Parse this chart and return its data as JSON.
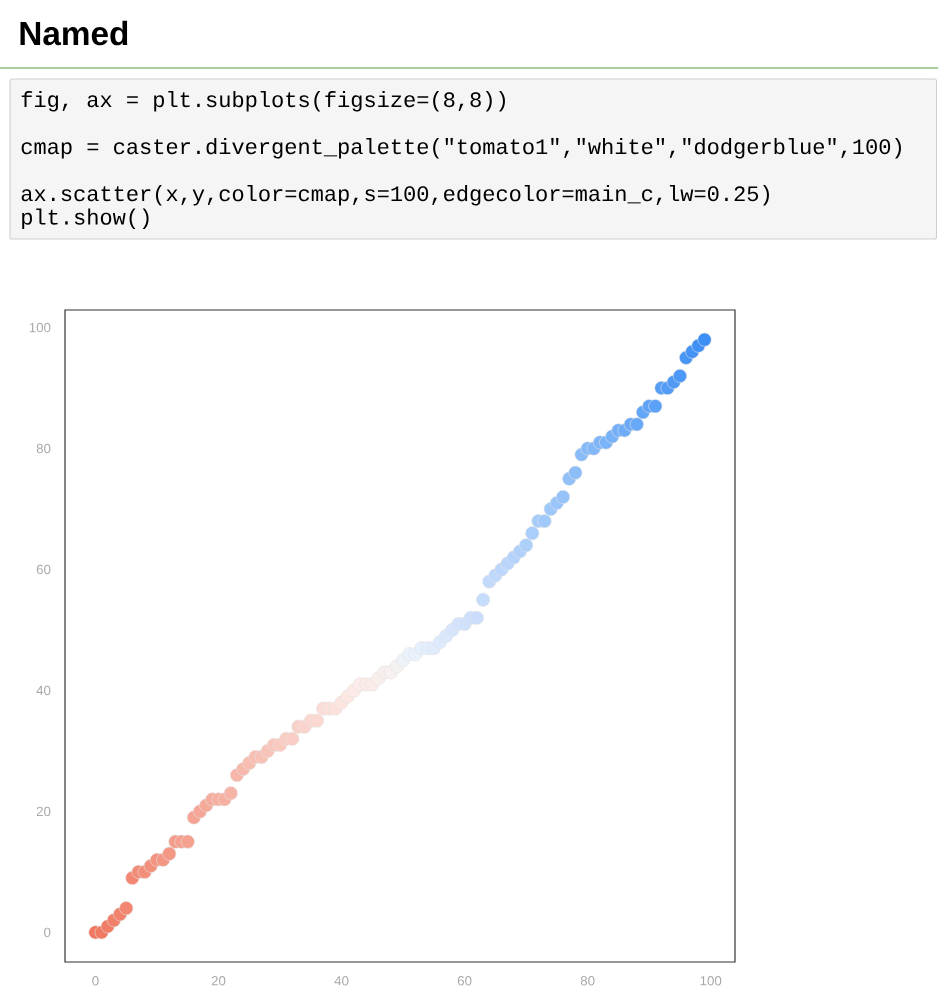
{
  "chart_data": {
    "type": "scatter",
    "title": "Named",
    "annotations": [
      "fig, ax = plt.subplots(figsize=(8,8))",
      "cmap = caster.divergent_palette(\"tomato1\",\"white\",\"dodgerblue\",100)",
      "ax.scatter(x,y,color=cmap,s=100,edgecolor=main_c,lw=0.25)",
      "plt.show()"
    ],
    "x": [
      0,
      1,
      2,
      3,
      4,
      5,
      6,
      7,
      8,
      9,
      10,
      11,
      12,
      13,
      14,
      15,
      16,
      17,
      18,
      19,
      20,
      21,
      22,
      23,
      24,
      25,
      26,
      27,
      28,
      29,
      30,
      31,
      32,
      33,
      34,
      35,
      36,
      37,
      38,
      39,
      40,
      41,
      42,
      43,
      44,
      45,
      46,
      47,
      48,
      49,
      50,
      51,
      52,
      53,
      54,
      55,
      56,
      57,
      58,
      59,
      60,
      61,
      62,
      63,
      64,
      65,
      66,
      67,
      68,
      69,
      70,
      71,
      72,
      73,
      74,
      75,
      76,
      77,
      78,
      79,
      80,
      81,
      82,
      83,
      84,
      85,
      86,
      87,
      88,
      89,
      90,
      91,
      92,
      93,
      94,
      95,
      96,
      97,
      98,
      99
    ],
    "values": [
      0,
      0,
      1,
      2,
      3,
      4,
      9,
      10,
      10,
      11,
      12,
      12,
      13,
      15,
      15,
      15,
      19,
      20,
      21,
      22,
      22,
      22,
      23,
      26,
      27,
      28,
      29,
      29,
      30,
      31,
      31,
      32,
      32,
      34,
      34,
      35,
      35,
      37,
      37,
      37,
      38,
      39,
      40,
      41,
      41,
      41,
      42,
      43,
      43,
      44,
      45,
      46,
      46,
      47,
      47,
      47,
      48,
      49,
      50,
      51,
      51,
      52,
      52,
      55,
      58,
      59,
      60,
      61,
      62,
      63,
      64,
      66,
      68,
      68,
      70,
      71,
      72,
      75,
      76,
      79,
      80,
      80,
      81,
      81,
      82,
      83,
      83,
      84,
      84,
      86,
      87,
      87,
      90,
      90,
      91,
      92,
      95,
      96,
      97,
      98
    ],
    "colors": [
      "#f07860",
      "#f07b63",
      "#f17d66",
      "#f1806a",
      "#f1836d",
      "#f28670",
      "#f28873",
      "#f28b76",
      "#f28e79",
      "#f3907d",
      "#f39380",
      "#f39683",
      "#f49886",
      "#f49b89",
      "#f49e8d",
      "#f5a190",
      "#f5a393",
      "#f5a696",
      "#f5a999",
      "#f6ab9c",
      "#f6aea0",
      "#f6b1a3",
      "#f7b3a6",
      "#f7b6a9",
      "#f7b9ac",
      "#f8bcb0",
      "#f8beb3",
      "#f8c1b6",
      "#f8c4b9",
      "#f9c6bc",
      "#f9c9bf",
      "#f9ccc3",
      "#facec6",
      "#fad1c9",
      "#fad4cc",
      "#fbd7cf",
      "#fbd9d2",
      "#fbdcd6",
      "#fbdfd9",
      "#fce1dc",
      "#fce4df",
      "#fce7e2",
      "#fde9e6",
      "#fdece9",
      "#fbebe6",
      "#f9ece9",
      "#f8eeeb",
      "#f7efed",
      "#f6f0ef",
      "#f5f1f0",
      "#eff3f8",
      "#ecf2fb",
      "#e9f1fc",
      "#e6effc",
      "#e3eefc",
      "#e0ecfc",
      "#dde9fc",
      "#dae7fc",
      "#d6e5fc",
      "#d3e3fc",
      "#d0e1fc",
      "#cddffc",
      "#cadefc",
      "#c6dcfc",
      "#c3dafc",
      "#c0d8fc",
      "#bdd7fc",
      "#b9d5fb",
      "#b5d2fb",
      "#b1d0fb",
      "#add0fb",
      "#a9cefb",
      "#a5cbfa",
      "#a1c9fa",
      "#9ec7fa",
      "#9ac5fa",
      "#96c3fa",
      "#92c0f9",
      "#8ebef9",
      "#8abcf9",
      "#86baf9",
      "#82b7f9",
      "#7eb5f8",
      "#7ab3f8",
      "#77b1f8",
      "#73aef8",
      "#6facf8",
      "#6baaf7",
      "#67a8f7",
      "#63a5f7",
      "#5fa3f7",
      "#5ba1f7",
      "#579ff6",
      "#539cf6",
      "#509af6",
      "#4c98f6",
      "#4896f6",
      "#4493f5",
      "#4091f5",
      "#3c8ff5"
    ],
    "xlim": [
      -4.95,
      103.95
    ],
    "ylim": [
      -4.9,
      102.9
    ],
    "xticks": [
      0,
      20,
      40,
      60,
      80,
      100
    ],
    "yticks": [
      0,
      20,
      40,
      60,
      80,
      100
    ],
    "marker": "circle"
  }
}
